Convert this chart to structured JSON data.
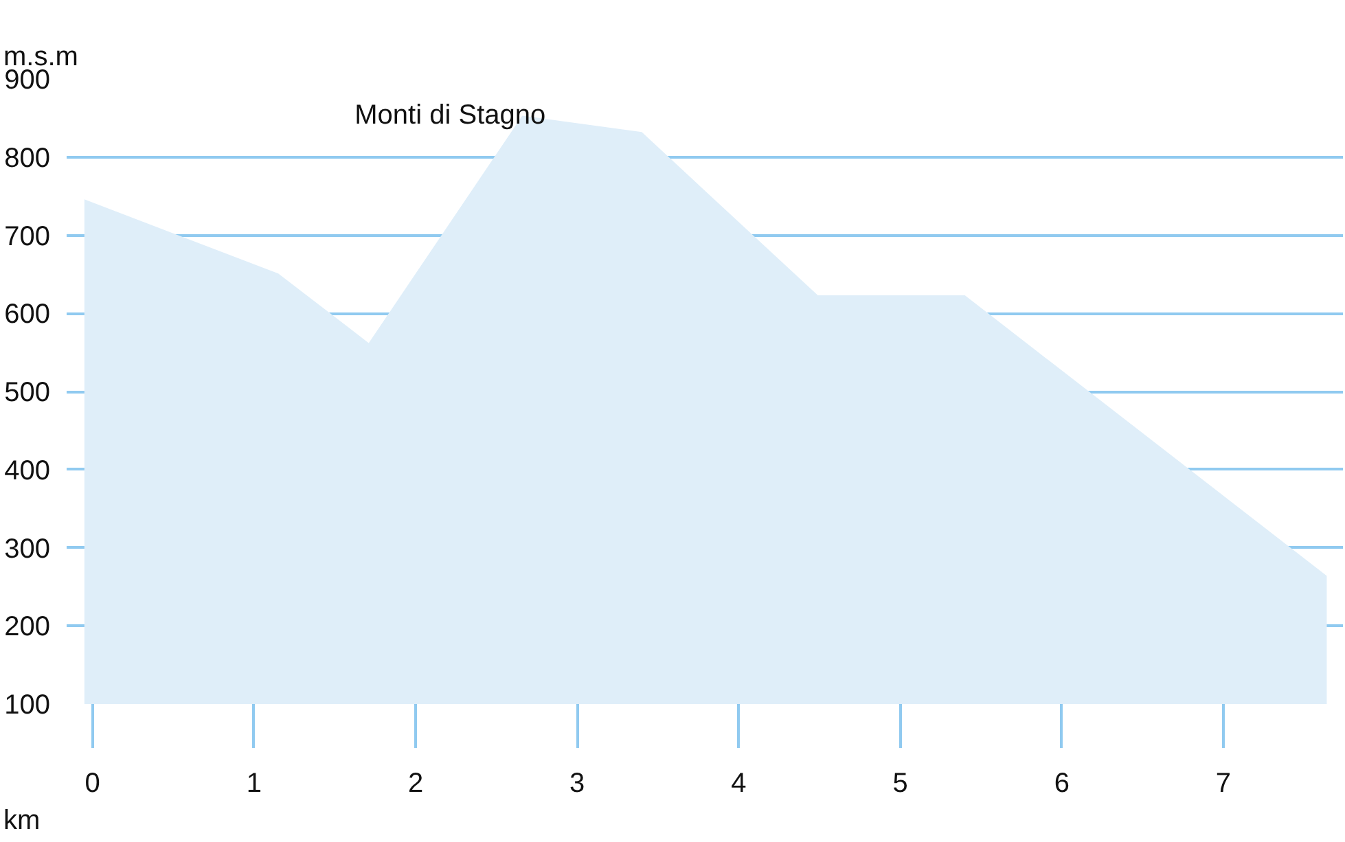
{
  "chart_data": {
    "type": "area",
    "xlabel": "km",
    "ylabel": "m.s.m",
    "x": [
      -0.05,
      1.15,
      1.71,
      2.66,
      3.4,
      4.49,
      5.4,
      7.64
    ],
    "values": [
      746,
      651,
      562,
      853,
      832,
      623,
      623,
      264
    ],
    "color": "#dfeef9",
    "xlim": [
      -0.16,
      7.74
    ],
    "ylim": [
      100,
      900
    ],
    "xticks": [
      0,
      1,
      2,
      3,
      4,
      5,
      6,
      7
    ],
    "yticks": [
      100,
      200,
      300,
      400,
      500,
      600,
      700,
      800,
      900
    ],
    "grid": "y",
    "annotations": [
      {
        "text": "Monti di Stagno",
        "x": 2.66,
        "y": 853
      }
    ]
  }
}
